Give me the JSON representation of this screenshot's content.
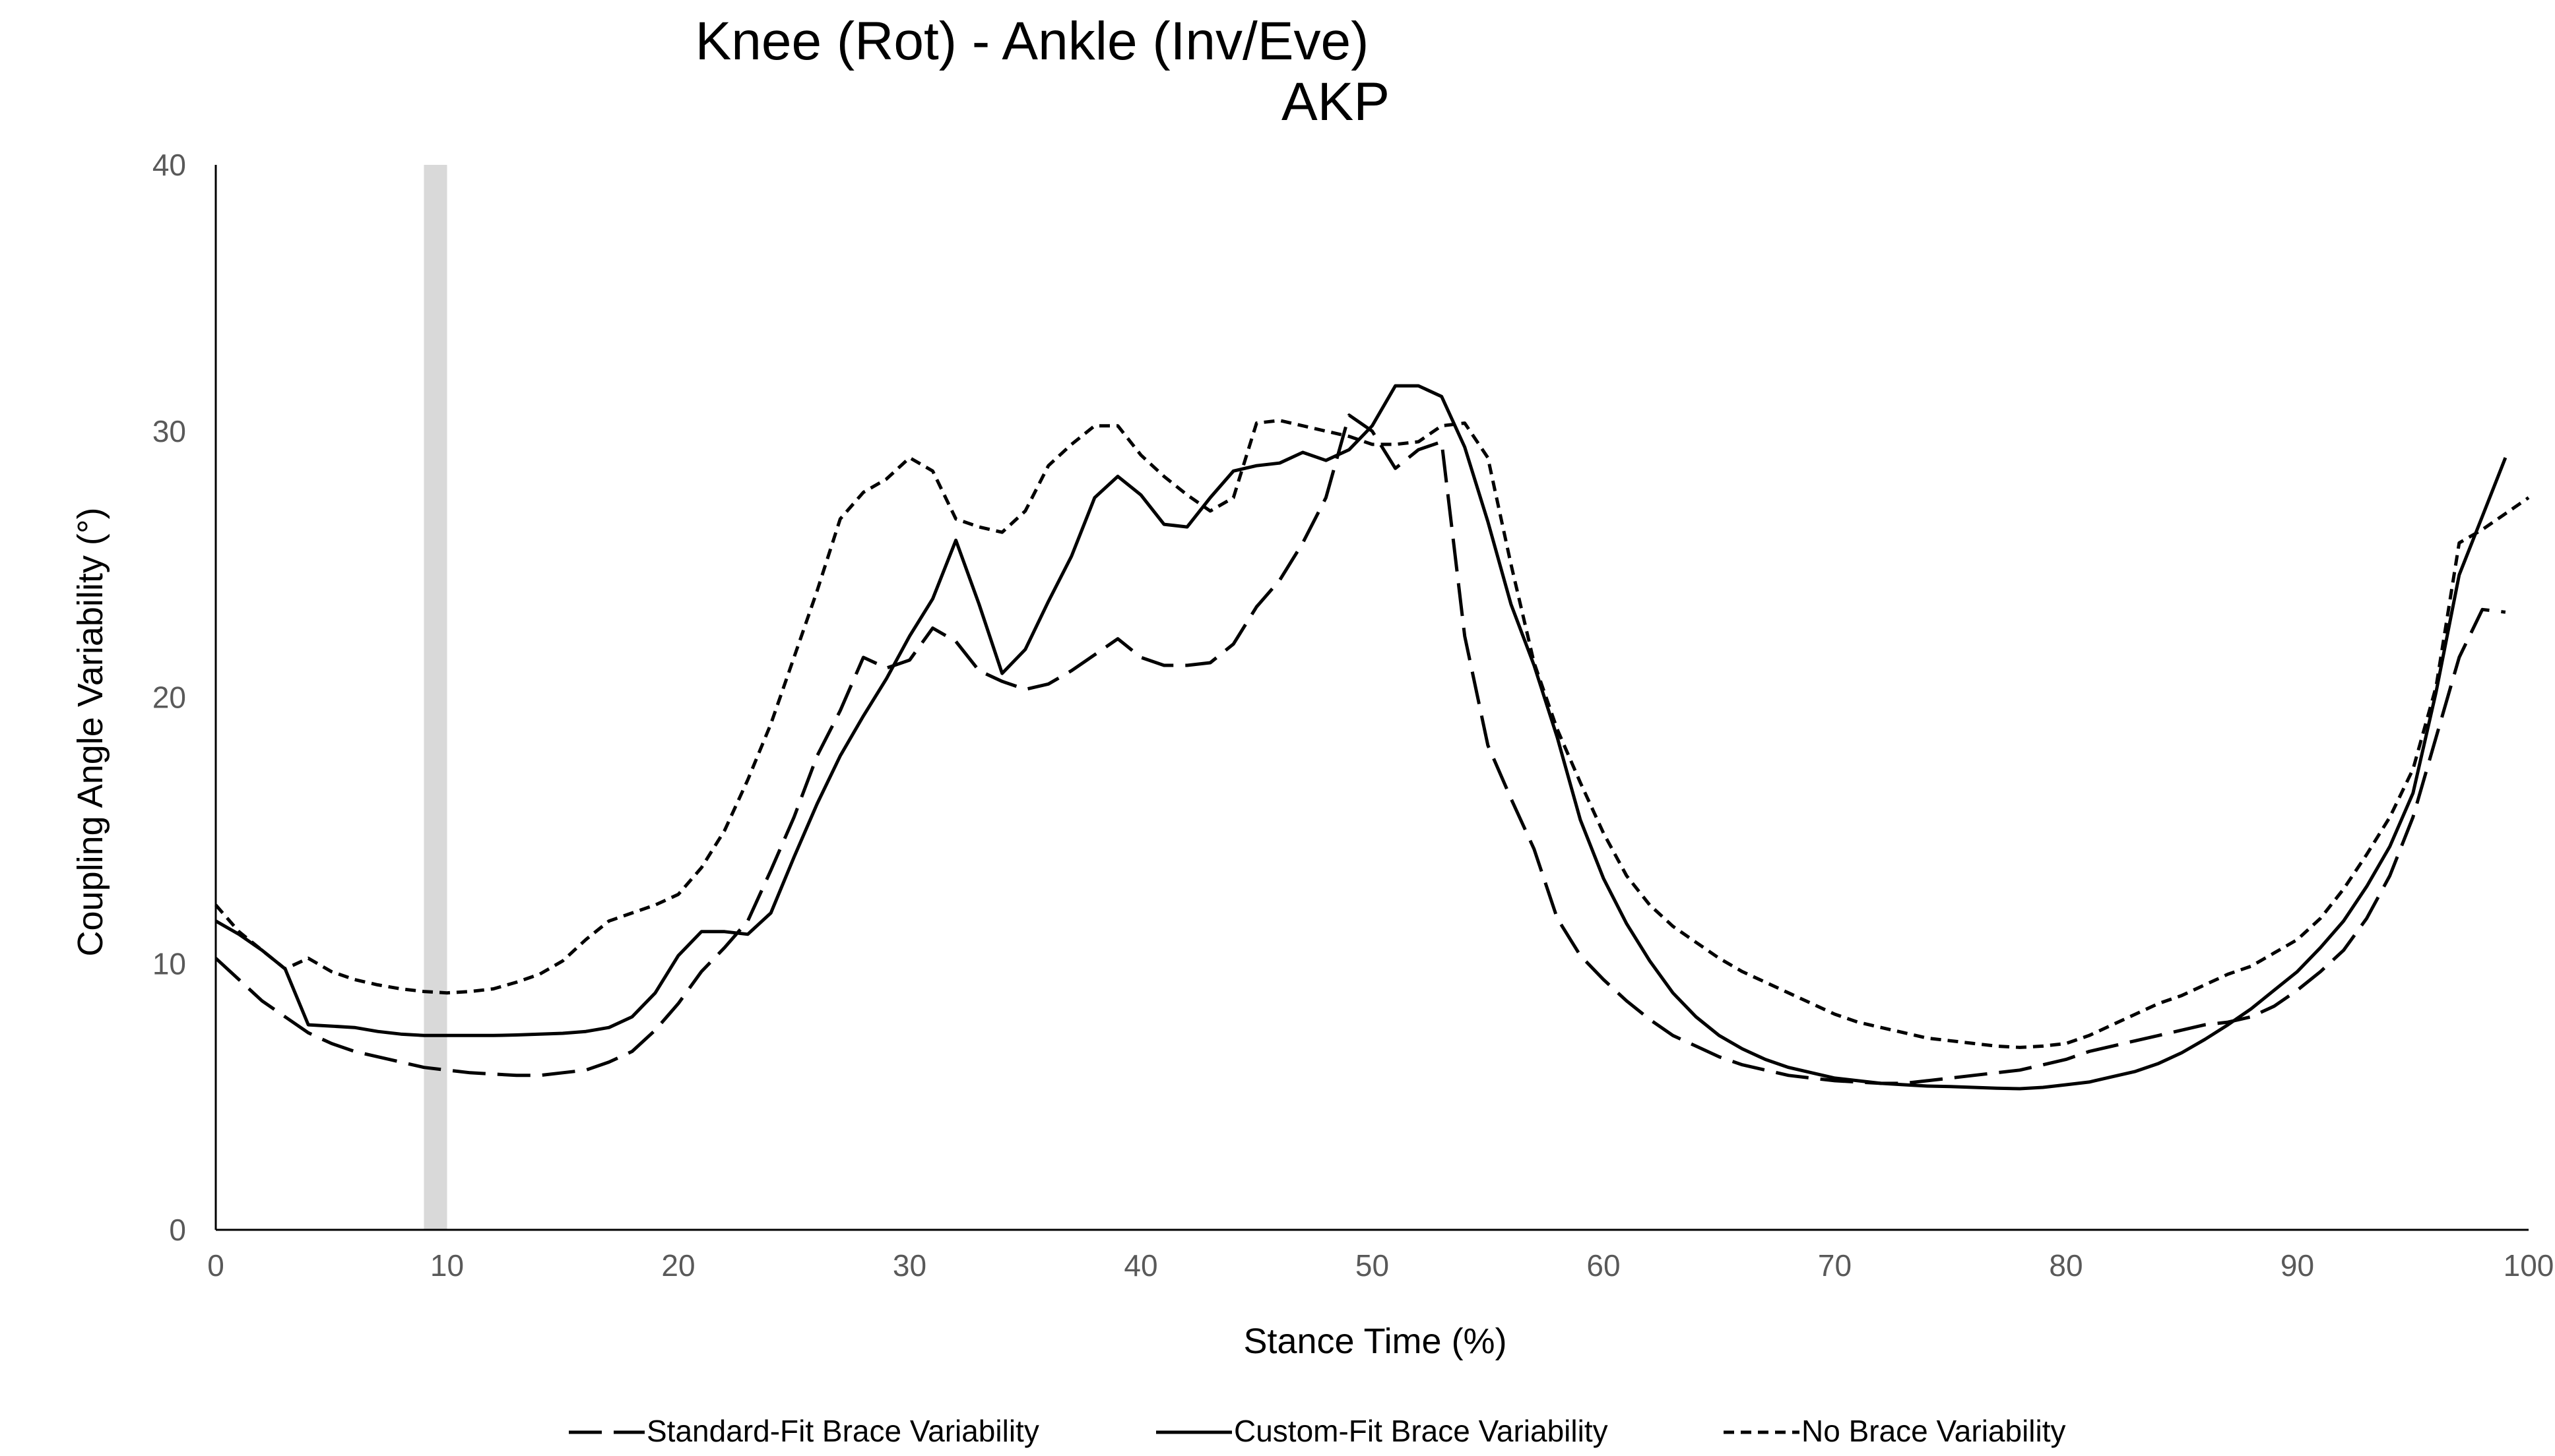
{
  "chart_data": {
    "type": "line",
    "title": "Knee (Rot) - Ankle (Inv/Eve)",
    "subtitle": "AKP",
    "xlabel": "Stance  Time (%)",
    "ylabel": "Coupling Angle Variability (°)",
    "xlim": [
      0,
      100
    ],
    "ylim": [
      0,
      40
    ],
    "xticks": [
      "0",
      "10",
      "20",
      "30",
      "40",
      "50",
      "60",
      "70",
      "80",
      "90",
      "100"
    ],
    "yticks": [
      "0",
      "10",
      "20",
      "30",
      "40"
    ],
    "grid": false,
    "legend_position": "bottom",
    "highlight_band": {
      "x_start": 9,
      "x_end": 10,
      "color": "#d9d9d9"
    },
    "series": [
      {
        "name": "Standard-Fit Brace Variability",
        "style": "dashed",
        "color": "#000000",
        "points": [
          [
            0,
            10.2
          ],
          [
            1,
            9.4
          ],
          [
            2,
            8.6
          ],
          [
            3,
            8.0
          ],
          [
            4,
            7.4
          ],
          [
            5,
            7.0
          ],
          [
            6,
            6.7
          ],
          [
            7,
            6.5
          ],
          [
            8,
            6.3
          ],
          [
            9,
            6.1
          ],
          [
            10,
            6.0
          ],
          [
            11,
            5.9
          ],
          [
            12,
            5.85
          ],
          [
            13,
            5.8
          ],
          [
            14,
            5.8
          ],
          [
            15,
            5.9
          ],
          [
            16,
            6.0
          ],
          [
            17,
            6.3
          ],
          [
            18,
            6.7
          ],
          [
            19,
            7.5
          ],
          [
            20,
            8.5
          ],
          [
            21,
            9.7
          ],
          [
            22,
            10.6
          ],
          [
            23,
            11.6
          ],
          [
            24,
            13.5
          ],
          [
            25,
            15.5
          ],
          [
            26,
            17.8
          ],
          [
            27,
            19.5
          ],
          [
            28,
            21.5
          ],
          [
            29,
            21.1
          ],
          [
            30,
            21.4
          ],
          [
            31,
            22.6
          ],
          [
            32,
            22.1
          ],
          [
            33,
            21.0
          ],
          [
            34,
            20.6
          ],
          [
            35,
            20.3
          ],
          [
            36,
            20.5
          ],
          [
            37,
            21.0
          ],
          [
            38,
            21.6
          ],
          [
            39,
            22.2
          ],
          [
            40,
            21.5
          ],
          [
            41,
            21.2
          ],
          [
            42,
            21.2
          ],
          [
            43,
            21.3
          ],
          [
            44,
            22.0
          ],
          [
            45,
            23.4
          ],
          [
            46,
            24.4
          ],
          [
            47,
            25.8
          ],
          [
            48,
            27.5
          ],
          [
            49,
            30.6
          ],
          [
            50,
            30.0
          ],
          [
            51,
            28.6
          ],
          [
            52,
            29.3
          ],
          [
            53,
            29.6
          ],
          [
            54,
            22.3
          ],
          [
            55,
            18.2
          ],
          [
            56,
            16.2
          ],
          [
            57,
            14.3
          ],
          [
            58,
            11.7
          ],
          [
            59,
            10.3
          ],
          [
            60,
            9.4
          ],
          [
            61,
            8.6
          ],
          [
            62,
            7.9
          ],
          [
            63,
            7.3
          ],
          [
            64,
            6.9
          ],
          [
            65,
            6.5
          ],
          [
            66,
            6.2
          ],
          [
            67,
            6.0
          ],
          [
            68,
            5.8
          ],
          [
            69,
            5.7
          ],
          [
            70,
            5.6
          ],
          [
            71,
            5.55
          ],
          [
            72,
            5.5
          ],
          [
            73,
            5.5
          ],
          [
            74,
            5.6
          ],
          [
            75,
            5.7
          ],
          [
            76,
            5.8
          ],
          [
            77,
            5.9
          ],
          [
            78,
            6.0
          ],
          [
            79,
            6.2
          ],
          [
            80,
            6.4
          ],
          [
            81,
            6.7
          ],
          [
            82,
            6.9
          ],
          [
            83,
            7.1
          ],
          [
            84,
            7.3
          ],
          [
            85,
            7.5
          ],
          [
            86,
            7.7
          ],
          [
            87,
            7.8
          ],
          [
            88,
            8.0
          ],
          [
            89,
            8.4
          ],
          [
            90,
            9.0
          ],
          [
            91,
            9.7
          ],
          [
            92,
            10.5
          ],
          [
            93,
            11.7
          ],
          [
            94,
            13.3
          ],
          [
            95,
            15.5
          ],
          [
            96,
            18.5
          ],
          [
            97,
            21.5
          ],
          [
            98,
            23.3
          ],
          [
            99,
            23.2
          ]
        ]
      },
      {
        "name": "Custom-Fit Brace Variability",
        "style": "solid",
        "color": "#000000",
        "points": [
          [
            0,
            11.6
          ],
          [
            1,
            11.1
          ],
          [
            2,
            10.5
          ],
          [
            3,
            9.8
          ],
          [
            4,
            7.7
          ],
          [
            5,
            7.65
          ],
          [
            6,
            7.6
          ],
          [
            7,
            7.45
          ],
          [
            8,
            7.35
          ],
          [
            9,
            7.3
          ],
          [
            10,
            7.3
          ],
          [
            11,
            7.3
          ],
          [
            12,
            7.3
          ],
          [
            13,
            7.32
          ],
          [
            14,
            7.35
          ],
          [
            15,
            7.38
          ],
          [
            16,
            7.45
          ],
          [
            17,
            7.6
          ],
          [
            18,
            8.0
          ],
          [
            19,
            8.9
          ],
          [
            20,
            10.3
          ],
          [
            21,
            11.2
          ],
          [
            22,
            11.2
          ],
          [
            23,
            11.1
          ],
          [
            24,
            11.9
          ],
          [
            25,
            14.0
          ],
          [
            26,
            16.0
          ],
          [
            27,
            17.8
          ],
          [
            28,
            19.3
          ],
          [
            29,
            20.7
          ],
          [
            30,
            22.3
          ],
          [
            31,
            23.7
          ],
          [
            32,
            25.9
          ],
          [
            33,
            23.5
          ],
          [
            34,
            20.9
          ],
          [
            35,
            21.8
          ],
          [
            36,
            23.6
          ],
          [
            37,
            25.3
          ],
          [
            38,
            27.5
          ],
          [
            39,
            28.3
          ],
          [
            40,
            27.6
          ],
          [
            41,
            26.5
          ],
          [
            42,
            26.4
          ],
          [
            43,
            27.5
          ],
          [
            44,
            28.5
          ],
          [
            45,
            28.7
          ],
          [
            46,
            28.8
          ],
          [
            47,
            29.2
          ],
          [
            48,
            28.9
          ],
          [
            49,
            29.3
          ],
          [
            50,
            30.2
          ],
          [
            51,
            31.7
          ],
          [
            52,
            31.7
          ],
          [
            53,
            31.3
          ],
          [
            54,
            29.4
          ],
          [
            55,
            26.6
          ],
          [
            56,
            23.5
          ],
          [
            57,
            21.2
          ],
          [
            58,
            18.5
          ],
          [
            59,
            15.4
          ],
          [
            60,
            13.2
          ],
          [
            61,
            11.5
          ],
          [
            62,
            10.1
          ],
          [
            63,
            8.9
          ],
          [
            64,
            8.0
          ],
          [
            65,
            7.3
          ],
          [
            66,
            6.8
          ],
          [
            67,
            6.4
          ],
          [
            68,
            6.1
          ],
          [
            69,
            5.9
          ],
          [
            70,
            5.7
          ],
          [
            71,
            5.6
          ],
          [
            72,
            5.5
          ],
          [
            73,
            5.45
          ],
          [
            74,
            5.4
          ],
          [
            75,
            5.38
          ],
          [
            76,
            5.35
          ],
          [
            77,
            5.32
          ],
          [
            78,
            5.3
          ],
          [
            79,
            5.35
          ],
          [
            80,
            5.45
          ],
          [
            81,
            5.55
          ],
          [
            82,
            5.75
          ],
          [
            83,
            5.95
          ],
          [
            84,
            6.25
          ],
          [
            85,
            6.65
          ],
          [
            86,
            7.15
          ],
          [
            87,
            7.7
          ],
          [
            88,
            8.3
          ],
          [
            89,
            9.0
          ],
          [
            90,
            9.7
          ],
          [
            91,
            10.6
          ],
          [
            92,
            11.6
          ],
          [
            93,
            12.9
          ],
          [
            94,
            14.4
          ],
          [
            95,
            16.4
          ],
          [
            96,
            20.2
          ],
          [
            97,
            24.6
          ],
          [
            98,
            26.8
          ],
          [
            99,
            29.0
          ]
        ]
      },
      {
        "name": "No Brace Variability",
        "style": "dotted",
        "color": "#000000",
        "points": [
          [
            0,
            12.2
          ],
          [
            1,
            11.2
          ],
          [
            2,
            10.5
          ],
          [
            3,
            9.8
          ],
          [
            4,
            10.2
          ],
          [
            5,
            9.7
          ],
          [
            6,
            9.4
          ],
          [
            7,
            9.2
          ],
          [
            8,
            9.05
          ],
          [
            9,
            8.95
          ],
          [
            10,
            8.9
          ],
          [
            11,
            8.95
          ],
          [
            12,
            9.05
          ],
          [
            13,
            9.3
          ],
          [
            14,
            9.6
          ],
          [
            15,
            10.1
          ],
          [
            16,
            10.9
          ],
          [
            17,
            11.6
          ],
          [
            18,
            11.9
          ],
          [
            19,
            12.2
          ],
          [
            20,
            12.6
          ],
          [
            21,
            13.6
          ],
          [
            22,
            15.0
          ],
          [
            23,
            16.9
          ],
          [
            24,
            19.0
          ],
          [
            25,
            21.5
          ],
          [
            26,
            24.0
          ],
          [
            27,
            26.7
          ],
          [
            28,
            27.7
          ],
          [
            29,
            28.2
          ],
          [
            30,
            29.0
          ],
          [
            31,
            28.5
          ],
          [
            32,
            26.7
          ],
          [
            33,
            26.4
          ],
          [
            34,
            26.2
          ],
          [
            35,
            27.0
          ],
          [
            36,
            28.7
          ],
          [
            37,
            29.5
          ],
          [
            38,
            30.2
          ],
          [
            39,
            30.2
          ],
          [
            40,
            29.1
          ],
          [
            41,
            28.3
          ],
          [
            42,
            27.6
          ],
          [
            43,
            27.0
          ],
          [
            44,
            27.5
          ],
          [
            45,
            30.3
          ],
          [
            46,
            30.4
          ],
          [
            47,
            30.2
          ],
          [
            48,
            30.0
          ],
          [
            49,
            29.8
          ],
          [
            50,
            29.5
          ],
          [
            51,
            29.5
          ],
          [
            52,
            29.6
          ],
          [
            53,
            30.2
          ],
          [
            54,
            30.3
          ],
          [
            55,
            29.0
          ],
          [
            56,
            25.0
          ],
          [
            57,
            21.3
          ],
          [
            58,
            18.8
          ],
          [
            59,
            16.8
          ],
          [
            60,
            14.9
          ],
          [
            61,
            13.3
          ],
          [
            62,
            12.2
          ],
          [
            63,
            11.4
          ],
          [
            64,
            10.8
          ],
          [
            65,
            10.2
          ],
          [
            66,
            9.7
          ],
          [
            67,
            9.3
          ],
          [
            68,
            8.9
          ],
          [
            69,
            8.5
          ],
          [
            70,
            8.1
          ],
          [
            71,
            7.8
          ],
          [
            72,
            7.6
          ],
          [
            73,
            7.4
          ],
          [
            74,
            7.2
          ],
          [
            75,
            7.1
          ],
          [
            76,
            7.0
          ],
          [
            77,
            6.9
          ],
          [
            78,
            6.85
          ],
          [
            79,
            6.9
          ],
          [
            80,
            7.0
          ],
          [
            81,
            7.3
          ],
          [
            82,
            7.7
          ],
          [
            83,
            8.1
          ],
          [
            84,
            8.5
          ],
          [
            85,
            8.8
          ],
          [
            86,
            9.2
          ],
          [
            87,
            9.6
          ],
          [
            88,
            9.9
          ],
          [
            89,
            10.4
          ],
          [
            90,
            10.9
          ],
          [
            91,
            11.7
          ],
          [
            92,
            12.8
          ],
          [
            93,
            14.1
          ],
          [
            94,
            15.5
          ],
          [
            95,
            17.3
          ],
          [
            96,
            20.4
          ],
          [
            97,
            25.8
          ],
          [
            98,
            26.3
          ],
          [
            99,
            26.9
          ],
          [
            100,
            27.5
          ]
        ]
      }
    ]
  }
}
